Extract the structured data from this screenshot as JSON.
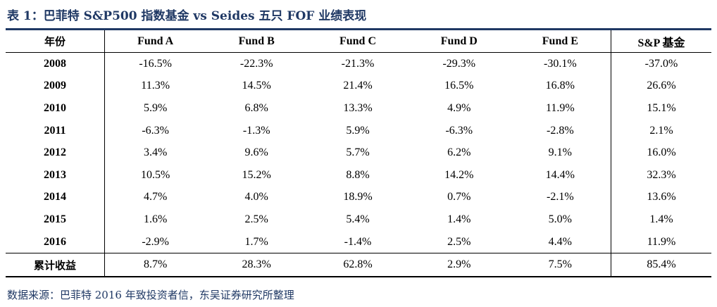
{
  "title": "表 1：巴菲特 S&P500 指数基金 vs Seides 五只 FOF 业绩表现",
  "table": {
    "headers": [
      "年份",
      "Fund A",
      "Fund B",
      "Fund C",
      "Fund D",
      "Fund E",
      "S&P  基金"
    ],
    "rows": [
      [
        "2008",
        "-16.5%",
        "-22.3%",
        "-21.3%",
        "-29.3%",
        "-30.1%",
        "-37.0%"
      ],
      [
        "2009",
        "11.3%",
        "14.5%",
        "21.4%",
        "16.5%",
        "16.8%",
        "26.6%"
      ],
      [
        "2010",
        "5.9%",
        "6.8%",
        "13.3%",
        "4.9%",
        "11.9%",
        "15.1%"
      ],
      [
        "2011",
        "-6.3%",
        "-1.3%",
        "5.9%",
        "-6.3%",
        "-2.8%",
        "2.1%"
      ],
      [
        "2012",
        "3.4%",
        "9.6%",
        "5.7%",
        "6.2%",
        "9.1%",
        "16.0%"
      ],
      [
        "2013",
        "10.5%",
        "15.2%",
        "8.8%",
        "14.2%",
        "14.4%",
        "32.3%"
      ],
      [
        "2014",
        "4.7%",
        "4.0%",
        "18.9%",
        "0.7%",
        "-2.1%",
        "13.6%"
      ],
      [
        "2015",
        "1.6%",
        "2.5%",
        "5.4%",
        "1.4%",
        "5.0%",
        "1.4%"
      ],
      [
        "2016",
        "-2.9%",
        "1.7%",
        "-1.4%",
        "2.5%",
        "4.4%",
        "11.9%"
      ]
    ],
    "total": [
      "累计收益",
      "8.7%",
      "28.3%",
      "62.8%",
      "2.9%",
      "7.5%",
      "85.4%"
    ]
  },
  "source": "数据来源：巴菲特 2016 年致投资者信，东吴证券研究所整理",
  "colors": {
    "title": "#1f3864",
    "rule": "#1f3864",
    "text": "#000000"
  }
}
